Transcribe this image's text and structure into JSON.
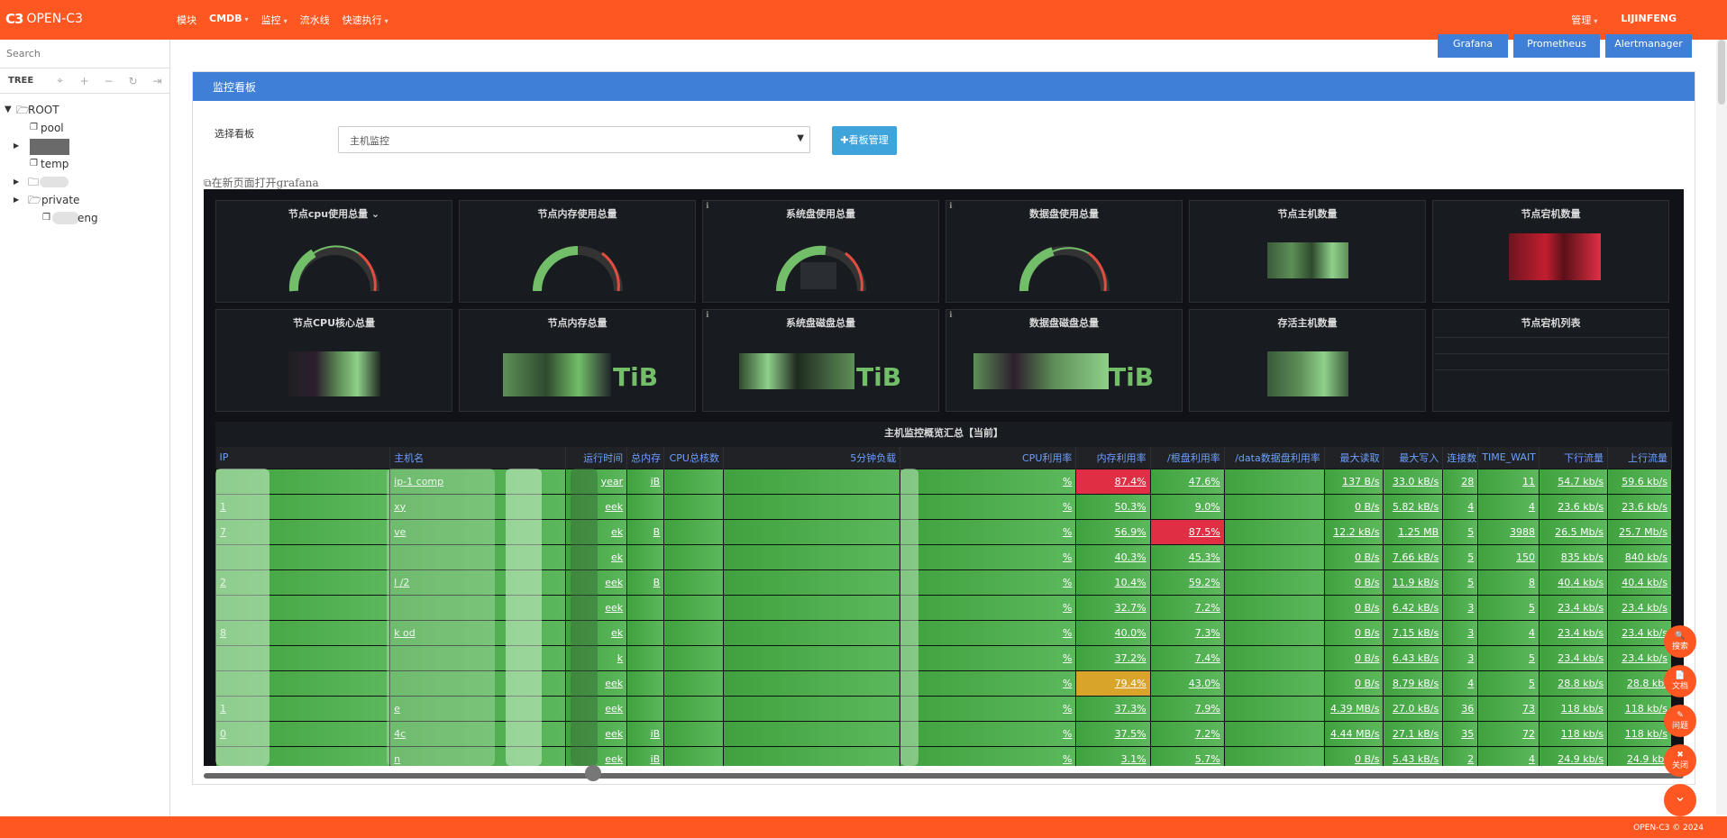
{
  "app": {
    "logo_mark": "C3",
    "title": "OPEN-C3"
  },
  "nav": [
    "模块",
    "CMDB",
    "监控",
    "流水线",
    "快速执行"
  ],
  "nav_right": {
    "admin": "管理",
    "user": "LIJINFENG"
  },
  "sidebar": {
    "search_placeholder": "Search",
    "tree_label": "TREE",
    "nodes": {
      "root": "ROOT",
      "pool": "pool",
      "temp": "temp",
      "private": "private",
      "leaf": "eng"
    }
  },
  "top_buttons": [
    "Grafana",
    "Prometheus",
    "Alertmanager"
  ],
  "panel": {
    "title": "监控看板",
    "select_label": "选择看板",
    "select_value": "主机监控",
    "manage_button": "✚看板管理",
    "open_link": "在新页面打开grafana"
  },
  "dashboard": {
    "row1": [
      "节点cpu使用总量",
      "节点内存使用总量",
      "系统盘使用总量",
      "数据盘使用总量",
      "节点主机数量",
      "节点宕机数量"
    ],
    "row2": [
      "节点CPU核心总量",
      "节点内存总量",
      "系统盘磁盘总量",
      "数据盘磁盘总量",
      "存活主机数量",
      "节点宕机列表"
    ],
    "unit_tib": "TiB",
    "info_icon": "ℹ",
    "table_title": "主机监控概览汇总【当前】",
    "columns": [
      "IP",
      "主机名",
      "运行时间",
      "总内存",
      "CPU总核数",
      "5分钟负载",
      "CPU利用率",
      "内存利用率",
      "/根盘利用率",
      "/data数据盘利用率",
      "最大读取",
      "最大写入",
      "连接数",
      "TIME_WAIT",
      "下行流量",
      "上行流量"
    ],
    "rows": [
      {
        "ip": "",
        "host": "ip-1                         comp",
        "uptime": "year",
        "mem": "iB",
        "cpu_util": "%",
        "mem_util": "87.4%",
        "root": "47.6%",
        "read": "137 B/s",
        "write": "33.0 kB/s",
        "conn": "28",
        "tw": "11",
        "down": "54.7 kb/s",
        "up": "59.6 kb/s"
      },
      {
        "ip": "1",
        "host": "xy",
        "uptime": "eek",
        "mem": "",
        "cpu_util": "%",
        "mem_util": "50.3%",
        "root": "9.0%",
        "read": "0 B/s",
        "write": "5.82 kB/s",
        "conn": "4",
        "tw": "4",
        "down": "23.6 kb/s",
        "up": "23.6 kb/s"
      },
      {
        "ip": "7",
        "host": "ve",
        "uptime": "ek",
        "mem": "B",
        "cpu_util": "%",
        "mem_util": "56.9%",
        "root": "87.5%",
        "read": "12.2 kB/s",
        "write": "1.25 MB",
        "conn": "5",
        "tw": "3988",
        "down": "26.5 Mb/s",
        "up": "25.7 Mb/s"
      },
      {
        "ip": "",
        "host": "",
        "uptime": "ek",
        "mem": "",
        "cpu_util": "%",
        "mem_util": "40.3%",
        "root": "45.3%",
        "read": "0 B/s",
        "write": "7.66 kB/s",
        "conn": "5",
        "tw": "150",
        "down": "835 kb/s",
        "up": "840 kb/s"
      },
      {
        "ip": "2",
        "host": "l                 /2",
        "uptime": "eek",
        "mem": "B",
        "cpu_util": "%",
        "mem_util": "10.4%",
        "root": "59.2%",
        "read": "0 B/s",
        "write": "11.9 kB/s",
        "conn": "5",
        "tw": "8",
        "down": "40.4 kb/s",
        "up": "40.4 kb/s"
      },
      {
        "ip": "",
        "host": "",
        "uptime": "eek",
        "mem": "",
        "cpu_util": "%",
        "mem_util": "32.7%",
        "root": "7.2%",
        "read": "0 B/s",
        "write": "6.42 kB/s",
        "conn": "3",
        "tw": "5",
        "down": "23.4 kb/s",
        "up": "23.4 kb/s"
      },
      {
        "ip": "8",
        "host": "k         od",
        "uptime": "ek",
        "mem": "",
        "cpu_util": "%",
        "mem_util": "40.0%",
        "root": "7.3%",
        "read": "0 B/s",
        "write": "7.15 kB/s",
        "conn": "3",
        "tw": "4",
        "down": "23.4 kb/s",
        "up": "23.4 kb/s"
      },
      {
        "ip": "",
        "host": "",
        "uptime": "k",
        "mem": "",
        "cpu_util": "%",
        "mem_util": "37.2%",
        "root": "7.4%",
        "read": "0 B/s",
        "write": "6.43 kB/s",
        "conn": "3",
        "tw": "5",
        "down": "23.4 kb/s",
        "up": "23.4 kb/s"
      },
      {
        "ip": "",
        "host": "",
        "uptime": "eek",
        "mem": "",
        "cpu_util": "%",
        "mem_util": "79.4%",
        "root": "43.0%",
        "read": "0 B/s",
        "write": "8.79 kB/s",
        "conn": "4",
        "tw": "5",
        "down": "28.8 kb/s",
        "up": "28.8 kb/"
      },
      {
        "ip": "1",
        "host": "e",
        "uptime": "eek",
        "mem": "",
        "cpu_util": "%",
        "mem_util": "37.3%",
        "root": "7.9%",
        "read": "4.39 MB/s",
        "write": "27.0 kB/s",
        "conn": "36",
        "tw": "73",
        "down": "118 kb/s",
        "up": "118 kb/s"
      },
      {
        "ip": "0",
        "host": "4c",
        "uptime": "eek",
        "mem": "iB",
        "cpu_util": "%",
        "mem_util": "37.5%",
        "root": "7.2%",
        "read": "4.44 MB/s",
        "write": "27.1 kB/s",
        "conn": "35",
        "tw": "72",
        "down": "118 kb/s",
        "up": "118 kb/s"
      },
      {
        "ip": "",
        "host": "n",
        "uptime": "eek",
        "mem": "iB",
        "cpu_util": "%",
        "mem_util": "3.1%",
        "root": "5.7%",
        "read": "0 B/s",
        "write": "5.43 kB/s",
        "conn": "2",
        "tw": "4",
        "down": "24.9 kb/s",
        "up": "24.9 kb/"
      }
    ]
  },
  "fabs": [
    {
      "icon": "🔍",
      "label": "搜索"
    },
    {
      "icon": "📄",
      "label": "文档"
    },
    {
      "icon": "✎",
      "label": "问题"
    },
    {
      "icon": "✖",
      "label": "关闭"
    }
  ],
  "footer": "OPEN-C3 © 2024",
  "colors": {
    "brand": "#ff5722",
    "primary": "#3f7fd8",
    "gauge_green": "#73bf69",
    "alert_red": "#e02f44",
    "warn_yellow": "#d9a42a"
  }
}
